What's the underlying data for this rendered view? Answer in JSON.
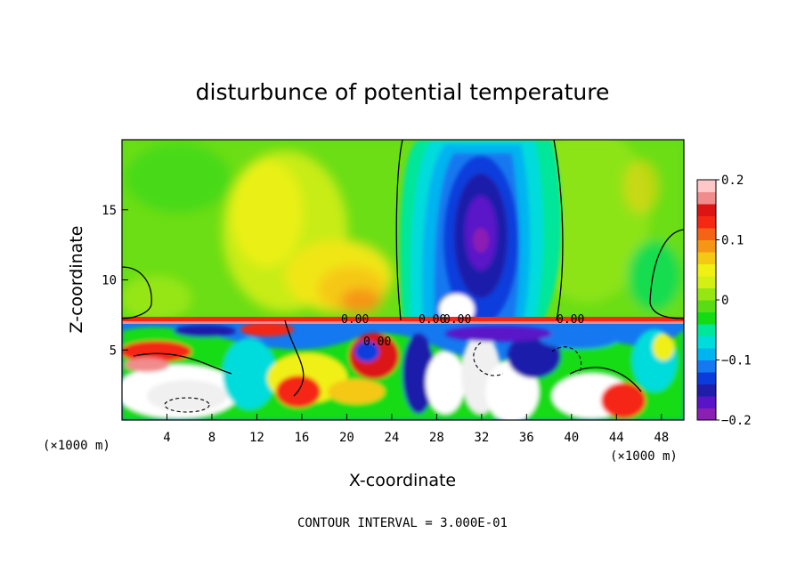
{
  "chart_data": {
    "type": "heatmap",
    "title": "disturbunce of potential temperature",
    "xlabel": "X-coordinate",
    "ylabel": "Z-coordinate",
    "x_unit": "(×1000 m)",
    "x_unit_right": "(×1000 m)",
    "xlim": [
      0,
      50
    ],
    "ylim": [
      0,
      20
    ],
    "x_ticks": [
      {
        "value": 4,
        "label": "4"
      },
      {
        "value": 8,
        "label": "8"
      },
      {
        "value": 12,
        "label": "12"
      },
      {
        "value": 16,
        "label": "16"
      },
      {
        "value": 20,
        "label": "20"
      },
      {
        "value": 24,
        "label": "24"
      },
      {
        "value": 28,
        "label": "28"
      },
      {
        "value": 32,
        "label": "32"
      },
      {
        "value": 36,
        "label": "36"
      },
      {
        "value": 40,
        "label": "40"
      },
      {
        "value": 44,
        "label": "44"
      },
      {
        "value": 48,
        "label": "48"
      }
    ],
    "y_ticks": [
      {
        "value": 5,
        "label": "5"
      },
      {
        "value": 10,
        "label": "10"
      },
      {
        "value": 15,
        "label": "15"
      }
    ],
    "colorbar": {
      "min": -0.2,
      "max": 0.2,
      "ticks": [
        {
          "value": 0.2,
          "label": "0.2"
        },
        {
          "value": 0.1,
          "label": "0.1"
        },
        {
          "value": 0,
          "label": "0"
        },
        {
          "value": -0.1,
          "label": "−0.1"
        },
        {
          "value": -0.2,
          "label": "−0.2"
        }
      ],
      "colors": [
        "#8c1fb3",
        "#5a14c8",
        "#1e1eaa",
        "#0a3cdc",
        "#1478f0",
        "#00b4f0",
        "#00dcdc",
        "#00e69a",
        "#14dc14",
        "#5adc14",
        "#96e614",
        "#d2f014",
        "#f0f014",
        "#f5c814",
        "#f59614",
        "#f56414",
        "#f52814",
        "#dc1414",
        "#f08c8c",
        "#ffc8c8"
      ]
    },
    "contour_labels": [
      "0.00",
      "0.00",
      "0.00",
      "0.00",
      "0.00"
    ],
    "contour_interval": "CONTOUR INTERVAL = 3.000E-01"
  }
}
